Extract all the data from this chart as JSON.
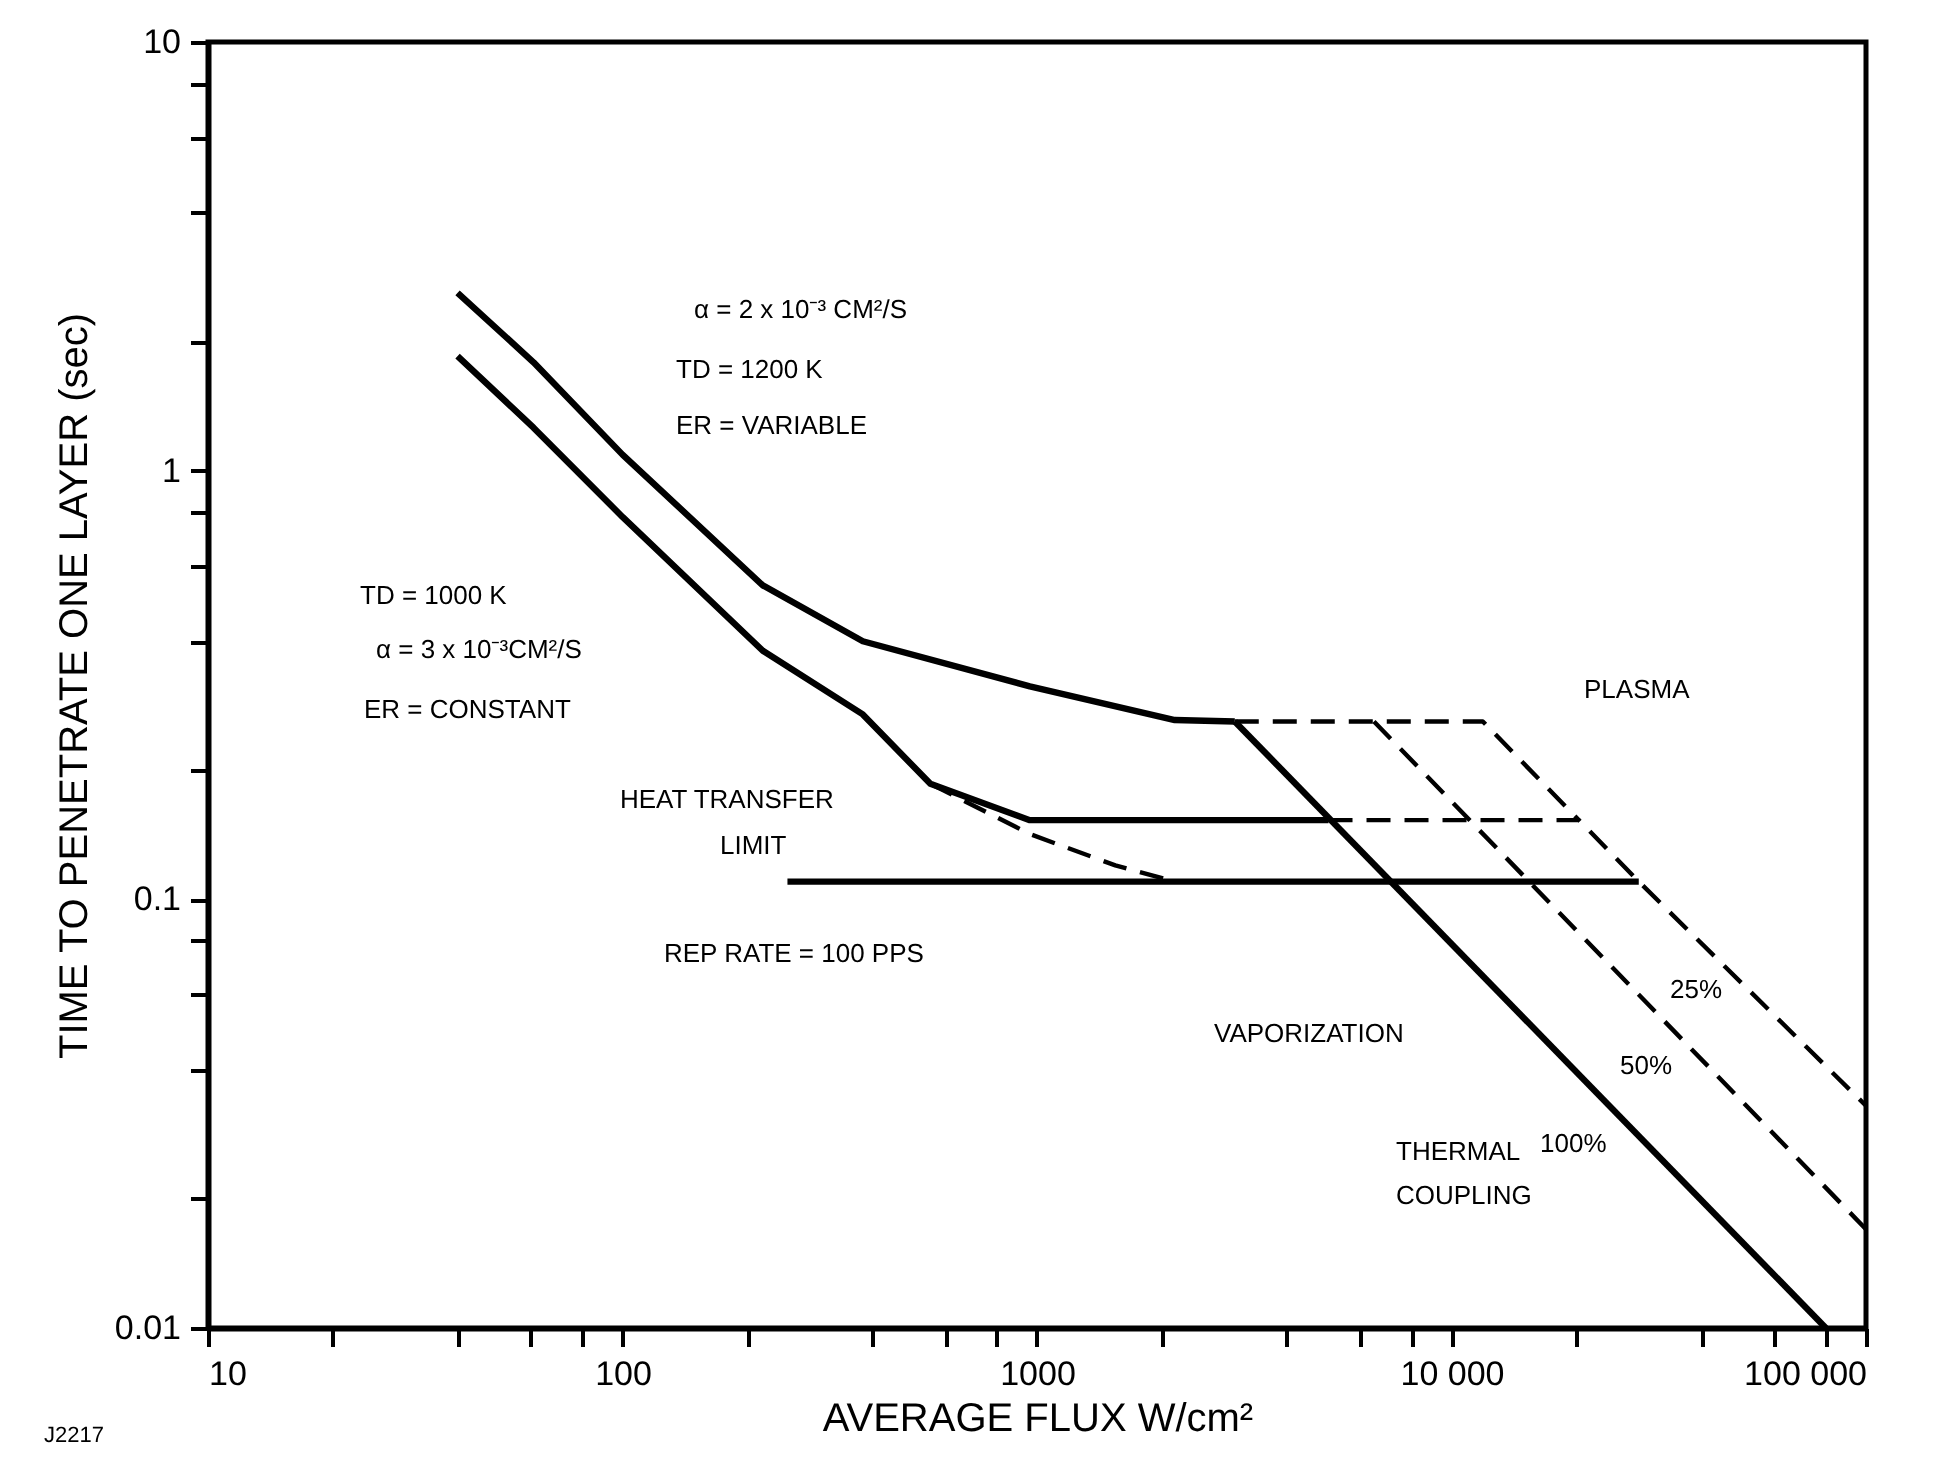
{
  "chart_data": {
    "type": "line",
    "xlabel": "AVERAGE FLUX W/cm²",
    "ylabel": "TIME TO PENETRATE ONE LAYER (sec)",
    "log": "xy",
    "grid": false,
    "marker": "none",
    "xlim": [
      10,
      100000
    ],
    "ylim": [
      0.01,
      10
    ],
    "xticks": [
      10,
      {
        "value": 20,
        "label": null
      },
      {
        "value": 40,
        "label": null
      },
      {
        "value": 60,
        "label": null
      },
      {
        "value": 80,
        "label": null
      },
      100,
      {
        "value": 200,
        "label": null
      },
      {
        "value": 400,
        "label": null
      },
      {
        "value": 600,
        "label": null
      },
      {
        "value": 800,
        "label": null
      },
      1000,
      {
        "value": 2000,
        "label": null
      },
      {
        "value": 4000,
        "label": null
      },
      {
        "value": 6000,
        "label": null
      },
      {
        "value": 8000,
        "label": null
      },
      {
        "value": 10000,
        "label": "10 000"
      },
      {
        "value": 20000,
        "label": null
      },
      {
        "value": 40000,
        "label": null
      },
      {
        "value": 60000,
        "label": null
      },
      {
        "value": 80000,
        "label": null
      },
      {
        "value": 100000,
        "label": "100 000"
      }
    ],
    "yticks": [
      0.01,
      {
        "value": 0.02,
        "label": null
      },
      {
        "value": 0.04,
        "label": null
      },
      {
        "value": 0.06,
        "label": null
      },
      {
        "value": 0.08,
        "label": null
      },
      0.1,
      {
        "value": 0.2,
        "label": null
      },
      {
        "value": 0.4,
        "label": null
      },
      {
        "value": 0.6,
        "label": null
      },
      {
        "value": 0.8,
        "label": null
      },
      1,
      {
        "value": 2,
        "label": null
      },
      {
        "value": 4,
        "label": null
      },
      {
        "value": 6,
        "label": null
      },
      {
        "value": 8,
        "label": null
      },
      10
    ],
    "series": [
      {
        "color": "#000000",
        "line_style": "solid",
        "x": [
          40,
          61,
          100,
          218,
          380,
          961,
          2150,
          3000
        ],
        "values": [
          2.6,
          1.79,
          1.09,
          0.54,
          0.4,
          0.314,
          0.262,
          0.26
        ]
      },
      {
        "color": "#000000",
        "line_style": "solid",
        "x": [
          40,
          61,
          100,
          218,
          380,
          553,
          961,
          5050
        ],
        "values": [
          1.85,
          1.26,
          0.78,
          0.38,
          0.27,
          0.186,
          0.153,
          0.153
        ]
      },
      {
        "color": "#000000",
        "line_style": "dashed",
        "x": [
          553,
          961,
          1545,
          2150
        ],
        "values": [
          0.186,
          0.142,
          0.12,
          0.11
        ]
      },
      {
        "color": "#000000",
        "line_style": "solid",
        "x": [
          250,
          28300
        ],
        "values": [
          0.11,
          0.11
        ]
      },
      {
        "color": "#000000",
        "line_style": "solid",
        "x": [
          3000,
          80000
        ],
        "values": [
          0.26,
          0.01
        ]
      },
      {
        "color": "#000000",
        "line_style": "dashed",
        "x": [
          3000,
          11900,
          20300
        ],
        "values": [
          0.26,
          0.26,
          0.153
        ]
      },
      {
        "color": "#000000",
        "line_style": "dashed",
        "x": [
          5050,
          20300,
          28300,
          100000
        ],
        "values": [
          0.153,
          0.153,
          0.11,
          0.033
        ]
      },
      {
        "color": "#000000",
        "line_style": "dashed",
        "x": [
          6500,
          100000
        ],
        "values": [
          0.26,
          0.017
        ]
      }
    ],
    "annotations": [
      "α  =  2 x 10⁻³ CM²/S",
      "TD  =  1200 K",
      "ER  =  VARIABLE",
      "TD =  1000 K",
      "α =  3 x 10⁻³CM²/S",
      "ER =  CONSTANT",
      "HEAT TRANSFER",
      "LIMIT",
      "REP RATE = 100 PPS",
      "PLASMA",
      "VAPORIZATION",
      "25%",
      "50%",
      "100%",
      "THERMAL",
      "COUPLING",
      "J2217"
    ]
  }
}
